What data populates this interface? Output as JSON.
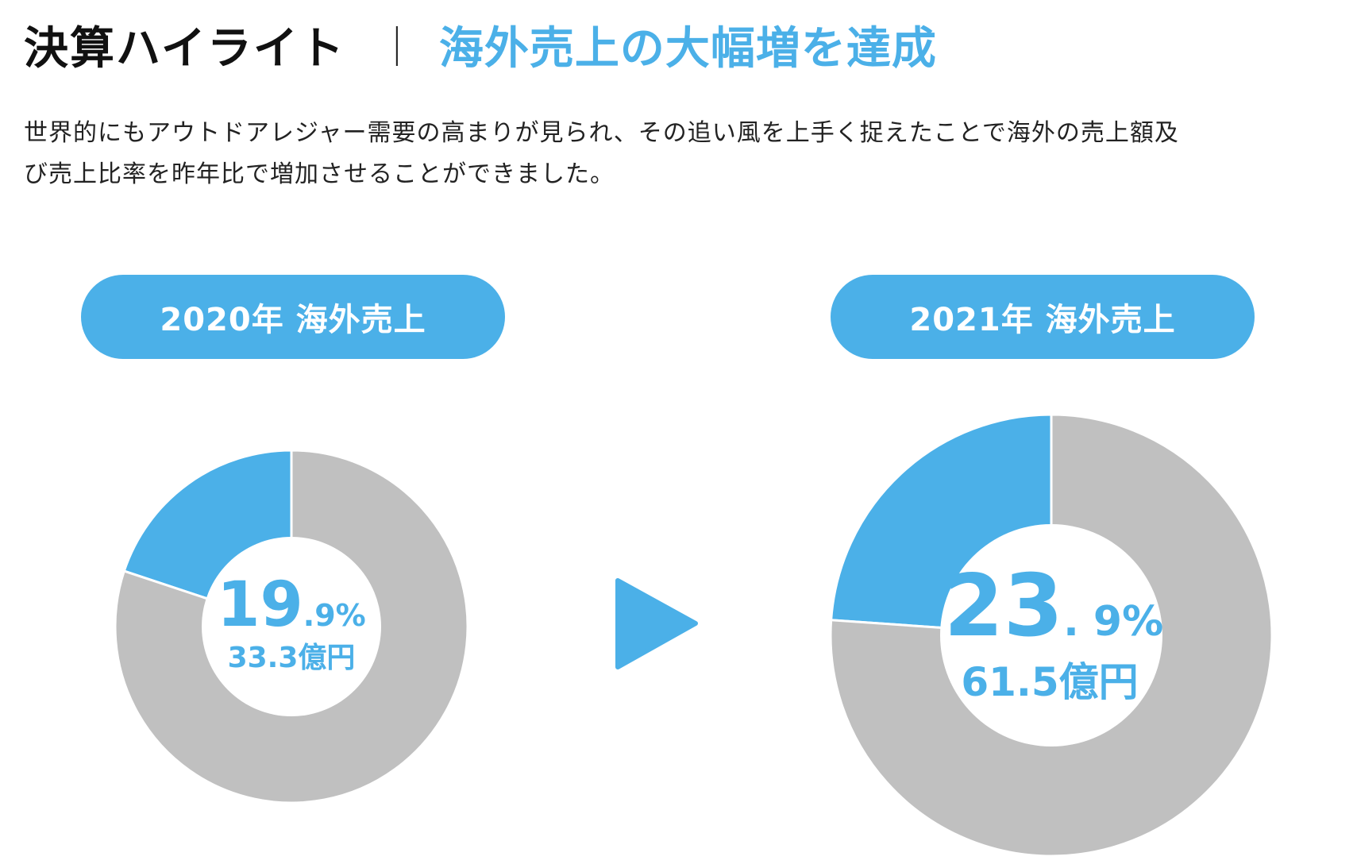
{
  "header": {
    "title": "決算ハイライト",
    "separator": "｜",
    "subtitle": "海外売上の大幅増を達成"
  },
  "lead": {
    "line1": "世界的にもアウトドアレジャー需要の高まりが見られ、その追い風を上手く捉えたことで海外の売上額及",
    "line2": "び売上比率を昨年比で増加させることができました。"
  },
  "colors": {
    "accent": "#4bb0e8",
    "rest": "#c0c0c0",
    "text": "#222222"
  },
  "arrow_icon": "play-triangle-icon",
  "chart_data": [
    {
      "type": "pie",
      "label": "2020年 海外売上",
      "slices": [
        {
          "value": 19.9,
          "color": "#4bb0e8"
        },
        {
          "value": 80.1,
          "color": "#c0c0c0"
        }
      ],
      "center_value": "19",
      "center_value_suffix": ".9%",
      "center_amount": "33.3億円"
    },
    {
      "type": "pie",
      "label": "2021年 海外売上",
      "slices": [
        {
          "value": 23.9,
          "color": "#4bb0e8"
        },
        {
          "value": 76.1,
          "color": "#c0c0c0"
        }
      ],
      "center_value": "23",
      "center_value_suffix": ". 9%",
      "center_amount": "61.5億円"
    }
  ]
}
